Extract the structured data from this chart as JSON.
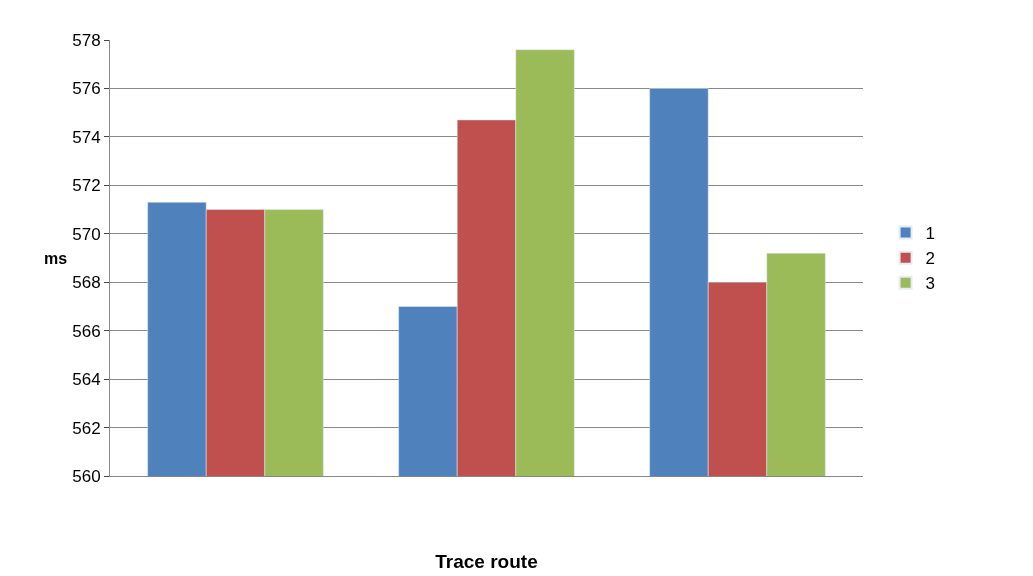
{
  "chart_data": {
    "type": "bar",
    "xlabel": "Trace route",
    "ylabel": "ms",
    "categories": [
      null,
      null,
      null
    ],
    "series": [
      {
        "name": "1",
        "color": "#4f81bd",
        "values": [
          571.3,
          567.0,
          576.0
        ]
      },
      {
        "name": "2",
        "color": "#c0504d",
        "values": [
          571.0,
          574.7,
          568.0
        ]
      },
      {
        "name": "3",
        "color": "#9bbb59",
        "values": [
          571.0,
          577.6,
          569.2
        ]
      }
    ],
    "ylim": [
      560,
      578
    ],
    "yticks": [
      560,
      562,
      564,
      566,
      568,
      570,
      572,
      574,
      576,
      578
    ],
    "grid": "y",
    "legend": "right"
  }
}
